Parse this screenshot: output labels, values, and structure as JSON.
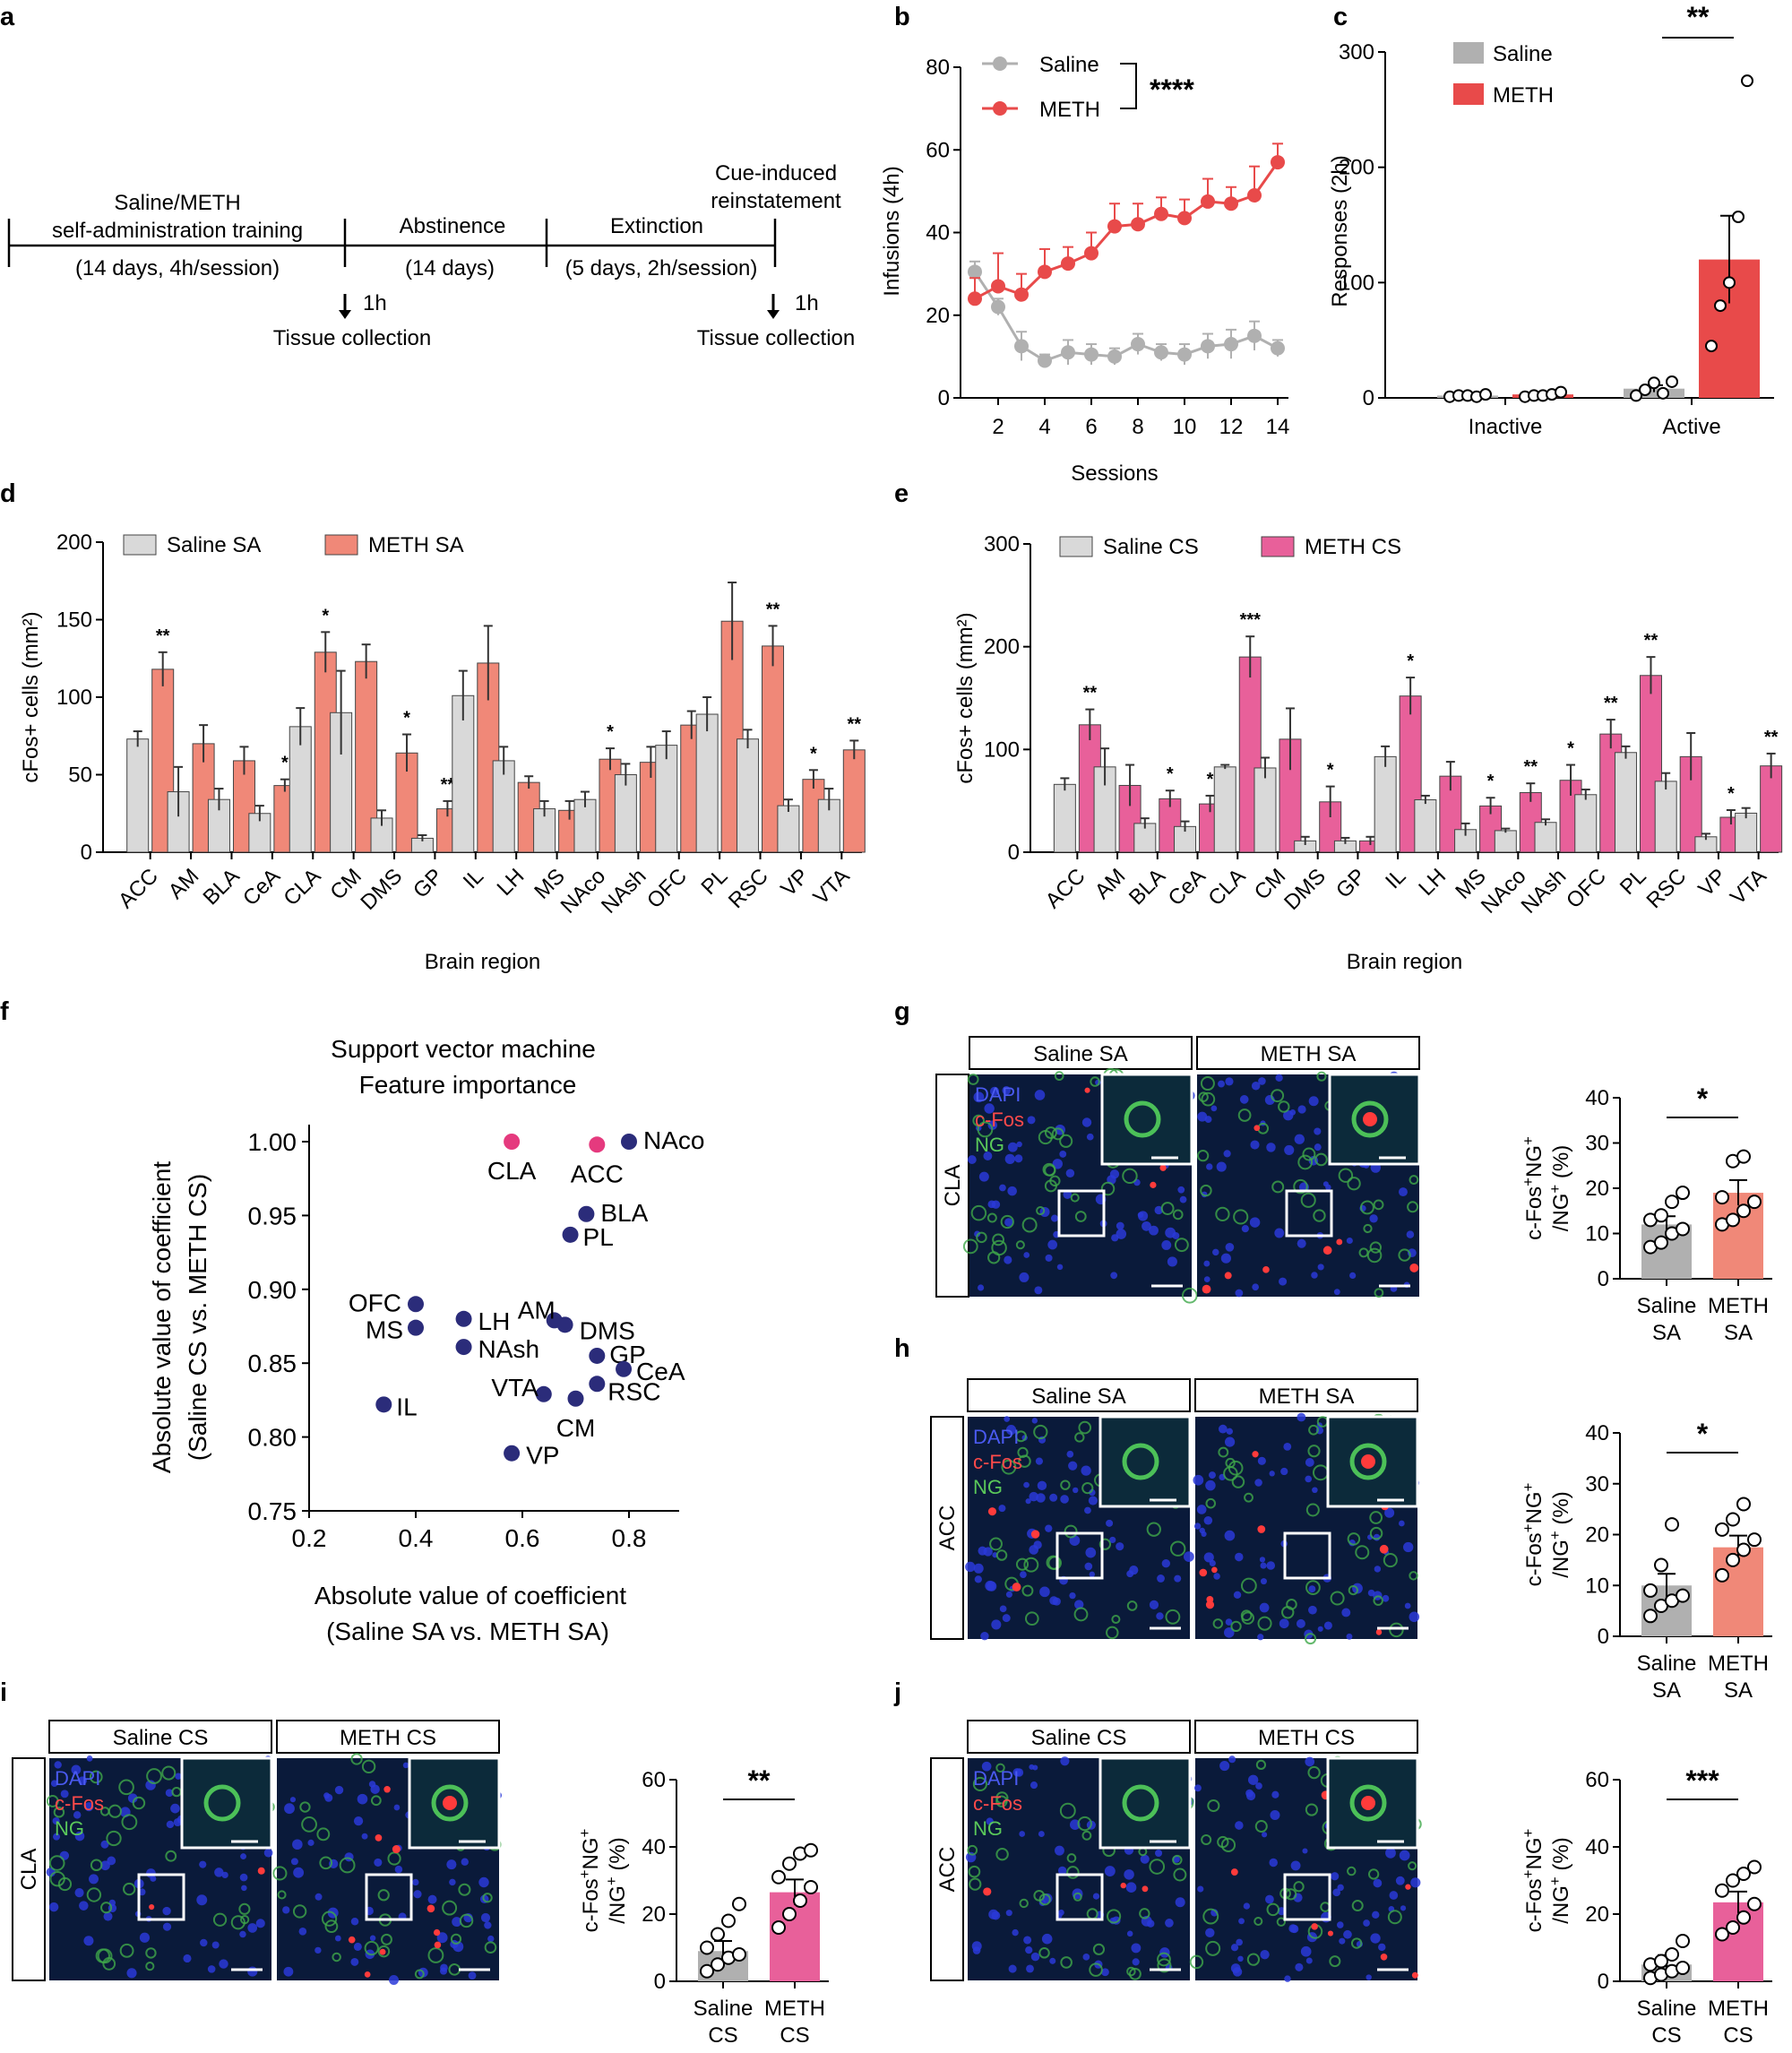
{
  "panel_letters": {
    "a": "a",
    "b": "b",
    "c": "c",
    "d": "d",
    "e": "e",
    "f": "f",
    "g": "g",
    "h": "h",
    "i": "i",
    "j": "j"
  },
  "colors": {
    "saline_gray": "#b0b0b0",
    "saline_light": "#d9d9d9",
    "meth_red": "#e84a4a",
    "meth_salmon": "#f08878",
    "meth_pink": "#e8609a",
    "navy_dot": "#2b2c7a",
    "pink_dot": "#e53a7e",
    "micro_bg": "#0a1a3a"
  },
  "timeline": {
    "phase1_line1": "Saline/METH",
    "phase1_line2": "self-administration training",
    "phase1_sub": "(14 days, 4h/session)",
    "phase2": "Abstinence",
    "phase2_sub": "(14 days)",
    "phase3": "Extinction",
    "phase3_sub": "(5 days, 2h/session)",
    "phase4_line1": "Cue-induced",
    "phase4_line2": "reinstatement",
    "interval": "1h",
    "collection": "Tissue collection"
  },
  "chart_data": [
    {
      "id": "b",
      "type": "line",
      "xlabel": "Sessions",
      "ylabel": "Infusions (4h)",
      "x": [
        1,
        2,
        3,
        4,
        5,
        6,
        7,
        8,
        9,
        10,
        11,
        12,
        13,
        14
      ],
      "xticks": [
        2,
        4,
        6,
        8,
        10,
        12,
        14
      ],
      "yticks": [
        0,
        20,
        40,
        60,
        80
      ],
      "ylim": [
        0,
        80
      ],
      "series": [
        {
          "name": "Saline",
          "values": [
            30.5,
            22,
            12.5,
            9,
            11,
            10.5,
            10,
            13,
            11,
            10.5,
            12.5,
            13,
            15,
            12
          ],
          "err": [
            2.5,
            2,
            3.5,
            1.5,
            3,
            2.5,
            2,
            2.5,
            2,
            2.5,
            3,
            3.5,
            3.5,
            2
          ]
        },
        {
          "name": "METH",
          "values": [
            24,
            27,
            25,
            30.5,
            32.5,
            35,
            41.5,
            42,
            44.5,
            43.5,
            47.5,
            47,
            49,
            57
          ],
          "err": [
            5,
            8,
            5,
            5.5,
            4,
            5,
            5.5,
            5,
            4,
            4.5,
            5.5,
            4,
            7,
            4.5
          ]
        }
      ],
      "significance": "****"
    },
    {
      "id": "c",
      "type": "bar",
      "ylabel": "Responses (2h)",
      "categories": [
        "Inactive",
        "Active"
      ],
      "yticks": [
        0,
        100,
        200,
        300
      ],
      "ylim": [
        0,
        300
      ],
      "series": [
        {
          "name": "Saline",
          "values": [
            2,
            8
          ],
          "err": [
            1,
            3
          ],
          "points": [
            [
              1,
              2,
              2,
              1,
              3
            ],
            [
              2,
              7,
              13,
              4,
              14
            ]
          ]
        },
        {
          "name": "METH",
          "values": [
            3,
            120
          ],
          "err": [
            1,
            38
          ],
          "points": [
            [
              1,
              2,
              2,
              3,
              5
            ],
            [
              45,
              80,
              100,
              157,
              275
            ]
          ]
        }
      ],
      "significance": "**"
    },
    {
      "id": "d",
      "type": "bar",
      "xlabel": "Brain region",
      "ylabel": "cFos+ cells (mm2)",
      "categories": [
        "ACC",
        "AM",
        "BLA",
        "CeA",
        "CLA",
        "CM",
        "DMS",
        "GP",
        "IL",
        "LH",
        "MS",
        "NAco",
        "NAsh",
        "OFC",
        "PL",
        "RSC",
        "VP",
        "VTA"
      ],
      "yticks": [
        0,
        50,
        100,
        150,
        200
      ],
      "ylim": [
        0,
        200
      ],
      "series": [
        {
          "name": "Saline SA",
          "values": [
            73,
            39,
            34,
            25,
            81,
            90,
            22,
            9,
            101,
            59,
            28,
            34,
            50,
            69,
            89,
            73,
            30,
            34
          ],
          "err": [
            5,
            16,
            7,
            5,
            12,
            27,
            5,
            2,
            16,
            9,
            5,
            5,
            7,
            9,
            11,
            6,
            4,
            7
          ]
        },
        {
          "name": "METH SA",
          "values": [
            118,
            70,
            59,
            43,
            129,
            123,
            64,
            28,
            122,
            45,
            27,
            60,
            58,
            82,
            149,
            133,
            47,
            66
          ],
          "err": [
            11,
            12,
            9,
            4,
            13,
            11,
            12,
            5,
            24,
            4,
            6,
            7,
            10,
            9,
            25,
            13,
            6,
            6
          ]
        }
      ],
      "significance": [
        "**",
        "",
        "",
        "*",
        "*",
        "",
        "*",
        "**",
        "",
        "",
        "",
        "*",
        "",
        "",
        "",
        "**",
        "*",
        "**"
      ]
    },
    {
      "id": "e",
      "type": "bar",
      "xlabel": "Brain region",
      "ylabel": "cFos+ cells (mm2)",
      "categories": [
        "ACC",
        "AM",
        "BLA",
        "CeA",
        "CLA",
        "CM",
        "DMS",
        "GP",
        "IL",
        "LH",
        "MS",
        "NAco",
        "NAsh",
        "OFC",
        "PL",
        "RSC",
        "VP",
        "VTA"
      ],
      "yticks": [
        0,
        100,
        200,
        300
      ],
      "ylim": [
        0,
        300
      ],
      "series": [
        {
          "name": "Saline CS",
          "values": [
            66,
            83,
            28,
            25,
            83,
            82,
            11,
            11,
            93,
            51,
            22,
            21,
            29,
            56,
            97,
            69,
            15,
            38
          ],
          "err": [
            6,
            18,
            5,
            5,
            2,
            10,
            4,
            3,
            10,
            4,
            6,
            2,
            3,
            5,
            6,
            8,
            3,
            5
          ]
        },
        {
          "name": "METH CS",
          "values": [
            124,
            65,
            52,
            47,
            190,
            110,
            49,
            11,
            152,
            74,
            45,
            58,
            70,
            115,
            172,
            93,
            34,
            84
          ],
          "err": [
            15,
            20,
            8,
            8,
            20,
            30,
            15,
            4,
            18,
            14,
            8,
            9,
            15,
            14,
            18,
            23,
            7,
            12
          ]
        }
      ],
      "significance": [
        "**",
        "",
        "*",
        "*",
        "***",
        "",
        "*",
        "",
        "*",
        "",
        "*",
        "**",
        "*",
        "**",
        "**",
        "",
        "*",
        "**"
      ]
    },
    {
      "id": "f",
      "type": "scatter",
      "title_line1": "Support vector machine",
      "title_line2": "Feature importance",
      "xlabel_line1": "Absolute value of coefficient",
      "xlabel_line2": "(Saline SA vs. METH SA)",
      "ylabel_line1": "Absolute value of coefficient",
      "ylabel_line2": "(Saline CS vs. METH CS)",
      "xlim": [
        0.2,
        0.9
      ],
      "ylim": [
        0.75,
        1.0
      ],
      "xticks": [
        "0.2",
        "0.4",
        "0.6",
        "0.8"
      ],
      "yticks": [
        "0.75",
        "0.80",
        "0.85",
        "0.90",
        "0.95",
        "1.00"
      ],
      "points": [
        {
          "label": "CLA",
          "x": 0.58,
          "y": 1.0,
          "hl": true
        },
        {
          "label": "ACC",
          "x": 0.74,
          "y": 0.998,
          "hl": true
        },
        {
          "label": "NAco",
          "x": 0.8,
          "y": 1.0,
          "hl": false
        },
        {
          "label": "BLA",
          "x": 0.72,
          "y": 0.951,
          "hl": false
        },
        {
          "label": "PL",
          "x": 0.69,
          "y": 0.937,
          "hl": false
        },
        {
          "label": "OFC",
          "x": 0.4,
          "y": 0.89,
          "hl": false
        },
        {
          "label": "MS",
          "x": 0.4,
          "y": 0.874,
          "hl": false
        },
        {
          "label": "LH",
          "x": 0.49,
          "y": 0.88,
          "hl": false
        },
        {
          "label": "NAsh",
          "x": 0.49,
          "y": 0.861,
          "hl": false
        },
        {
          "label": "AM",
          "x": 0.66,
          "y": 0.879,
          "hl": false
        },
        {
          "label": "DMS",
          "x": 0.68,
          "y": 0.876,
          "hl": false
        },
        {
          "label": "GP",
          "x": 0.74,
          "y": 0.855,
          "hl": false
        },
        {
          "label": "CeA",
          "x": 0.79,
          "y": 0.846,
          "hl": false
        },
        {
          "label": "RSC",
          "x": 0.74,
          "y": 0.836,
          "hl": false
        },
        {
          "label": "VTA",
          "x": 0.64,
          "y": 0.829,
          "hl": false
        },
        {
          "label": "CM",
          "x": 0.7,
          "y": 0.826,
          "hl": false
        },
        {
          "label": "IL",
          "x": 0.34,
          "y": 0.822,
          "hl": false
        },
        {
          "label": "VP",
          "x": 0.58,
          "y": 0.789,
          "hl": false
        }
      ]
    },
    {
      "id": "g",
      "type": "bar",
      "ylabel_line1": "c-Fos+NG+",
      "ylabel_line2": "/NG+ (%)",
      "categories": [
        [
          "Saline",
          "SA"
        ],
        [
          "METH",
          "SA"
        ]
      ],
      "yticks": [
        0,
        10,
        20,
        30,
        40
      ],
      "ylim": [
        0,
        40
      ],
      "values": [
        12,
        19
      ],
      "err": [
        1.8,
        2.8
      ],
      "points": [
        [
          7,
          8,
          10,
          11,
          13,
          14,
          17,
          19
        ],
        [
          12,
          13,
          15,
          17,
          18,
          26,
          27
        ]
      ],
      "significance": "*"
    },
    {
      "id": "h",
      "type": "bar",
      "ylabel_line1": "c-Fos+NG+",
      "ylabel_line2": "/NG+ (%)",
      "categories": [
        [
          "Saline",
          "SA"
        ],
        [
          "METH",
          "SA"
        ]
      ],
      "yticks": [
        0,
        10,
        20,
        30,
        40
      ],
      "ylim": [
        0,
        40
      ],
      "values": [
        10,
        17.5
      ],
      "err": [
        2.3,
        2.3
      ],
      "points": [
        [
          4,
          6,
          7,
          8,
          9,
          14,
          22
        ],
        [
          12,
          15,
          17,
          19,
          21,
          23,
          26
        ]
      ],
      "significance": "*"
    },
    {
      "id": "i",
      "type": "bar",
      "ylabel_line1": "c-Fos+NG+",
      "ylabel_line2": "/NG+ (%)",
      "categories": [
        [
          "Saline",
          "CS"
        ],
        [
          "METH",
          "CS"
        ]
      ],
      "yticks": [
        0,
        20,
        40,
        60
      ],
      "ylim": [
        0,
        60
      ],
      "values": [
        9,
        26.5
      ],
      "err": [
        3,
        3.8
      ],
      "points": [
        [
          3,
          5,
          7,
          8,
          10,
          14,
          18,
          23
        ],
        [
          16,
          20,
          24,
          28,
          31,
          35,
          38,
          39
        ]
      ],
      "significance": "**"
    },
    {
      "id": "j",
      "type": "bar",
      "ylabel_line1": "c-Fos+NG+",
      "ylabel_line2": "/NG+ (%)",
      "categories": [
        [
          "Saline",
          "CS"
        ],
        [
          "METH",
          "CS"
        ]
      ],
      "yticks": [
        0,
        20,
        40,
        60
      ],
      "ylim": [
        0,
        60
      ],
      "values": [
        5,
        23.5
      ],
      "err": [
        2.8,
        3.2
      ],
      "points": [
        [
          1,
          2,
          3,
          4,
          5,
          6,
          8,
          12
        ],
        [
          14,
          16,
          19,
          23,
          27,
          30,
          32,
          34
        ]
      ],
      "significance": "***"
    }
  ],
  "micro": {
    "g": {
      "left": "Saline SA",
      "right": "METH SA",
      "region": "CLA"
    },
    "h": {
      "left": "Saline SA",
      "right": "METH SA",
      "region": "ACC"
    },
    "i": {
      "left": "Saline CS",
      "right": "METH CS",
      "region": "CLA"
    },
    "j": {
      "left": "Saline CS",
      "right": "METH CS",
      "region": "ACC"
    },
    "legend_dapi": "DAPI",
    "legend_cfos": "c-Fos",
    "legend_ng": "NG"
  }
}
